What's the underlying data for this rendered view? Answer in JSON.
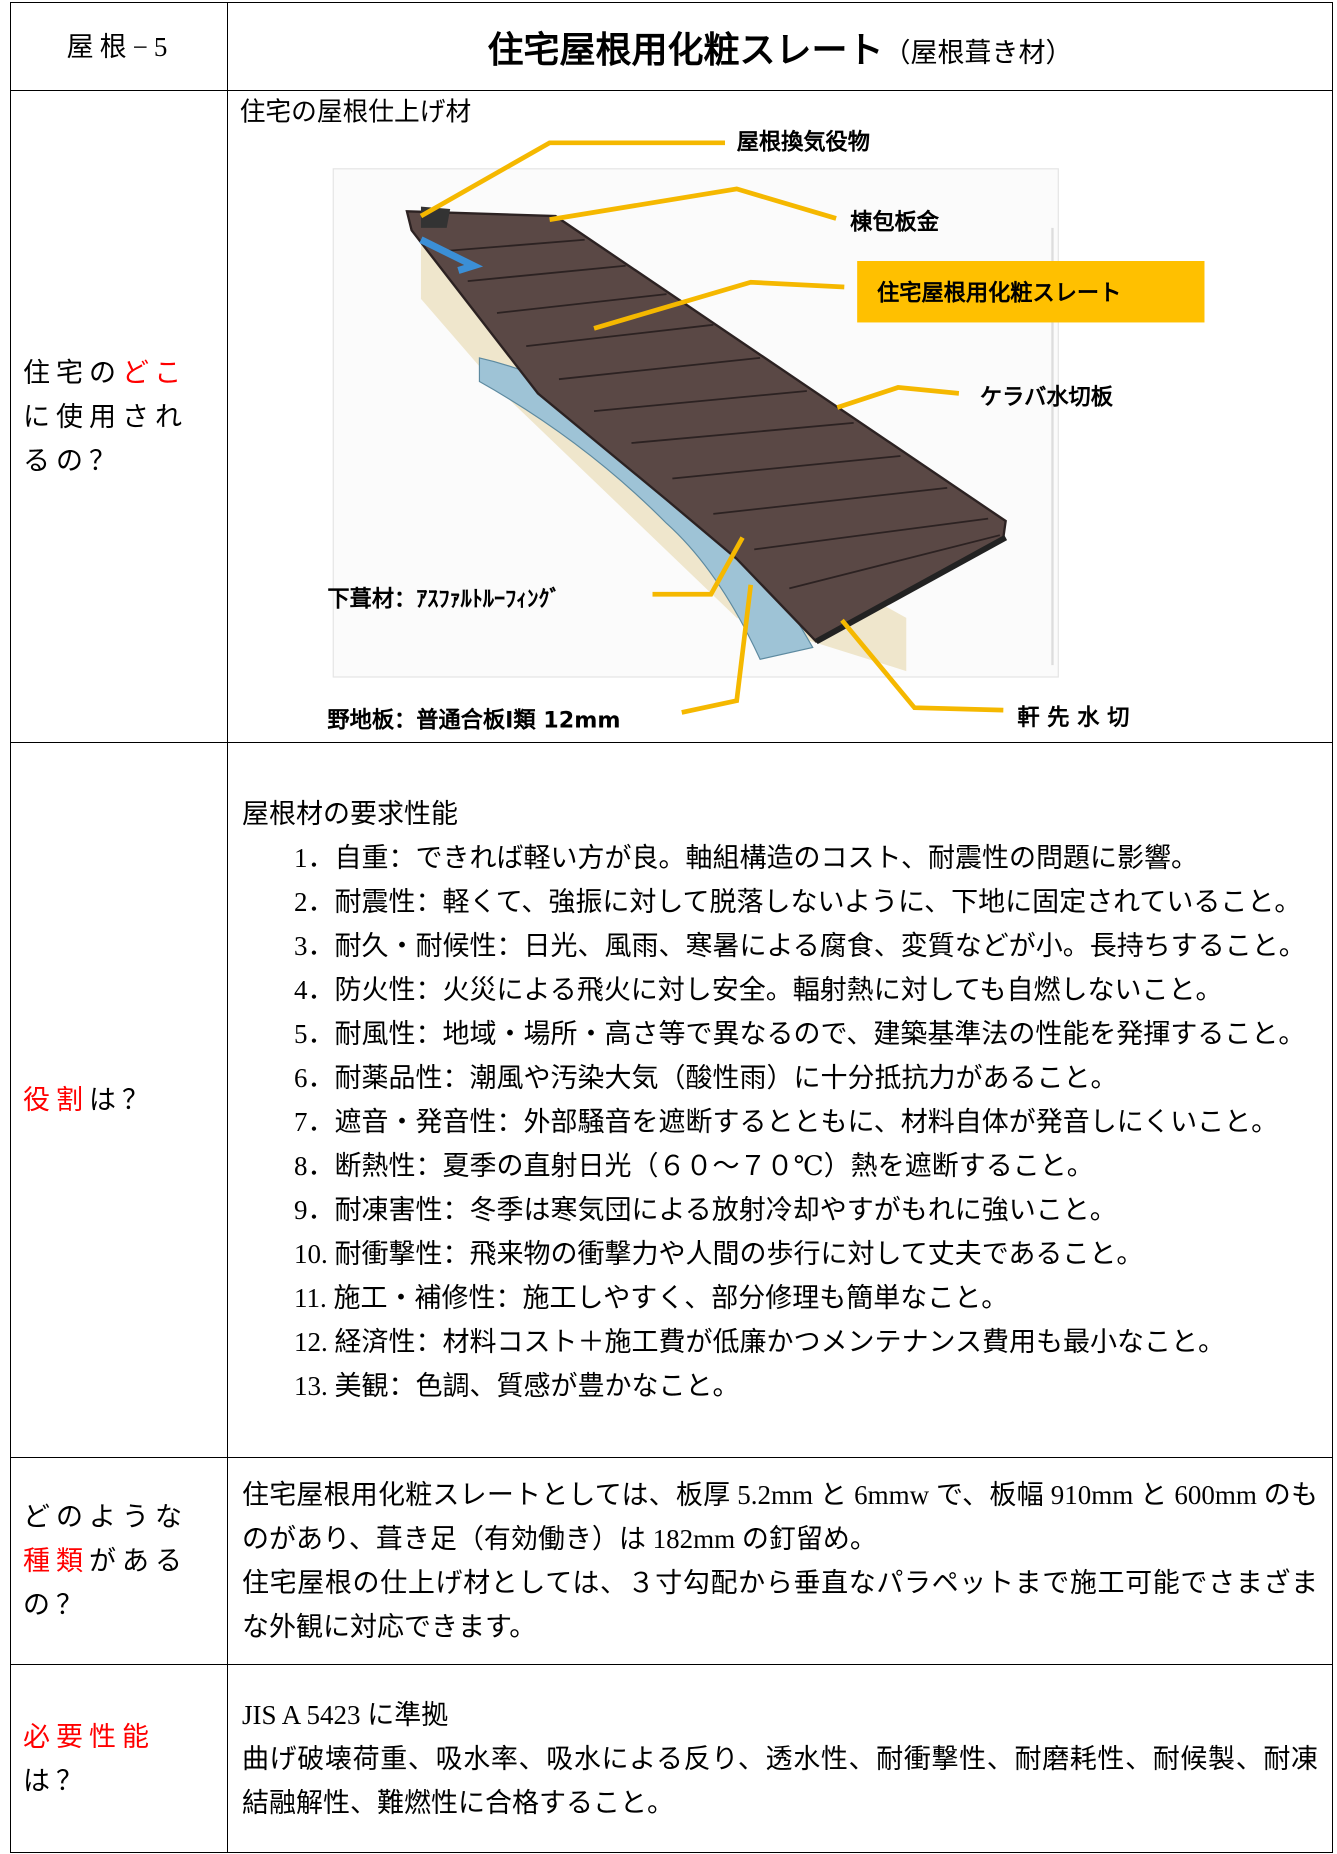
{
  "header": {
    "code": "屋根−5",
    "title": "住宅屋根用化粧スレート",
    "subtitle": "（屋根葺き材）"
  },
  "emphasis_color": "#ff0000",
  "rows": [
    {
      "label": [
        {
          "text": "住宅の"
        },
        {
          "text": "どこ",
          "emphasis": true
        },
        {
          "text": "に使用されるの？"
        }
      ],
      "diagram": {
        "caption": "住宅の屋根仕上げ材",
        "callouts": [
          "屋根換気役物",
          "棟包板金",
          "住宅屋根用化粧スレート",
          "ケラバ水切板",
          "下葺材：ｱｽﾌｧﾙﾄﾙｰﾌｨﾝｸﾞ",
          "野地板：普通合板Ⅰ類 12mm",
          "軒 先 水 切"
        ]
      }
    },
    {
      "label": [
        {
          "text": "役割",
          "emphasis": true
        },
        {
          "text": "は？"
        }
      ],
      "heading": "屋根材の要求性能",
      "items": [
        "1．自重：できれば軽い方が良。軸組構造のコスト、耐震性の問題に影響。",
        "2．耐震性：軽くて、強振に対して脱落しないように、下地に固定されていること。",
        "3．耐久・耐候性：日光、風雨、寒暑による腐食、変質などが小。長持ちすること。",
        "4．防火性：火災による飛火に対し安全。輻射熱に対しても自燃しないこと。",
        "5．耐風性：地域・場所・高さ等で異なるので、建築基準法の性能を発揮すること。",
        "6．耐薬品性：潮風や汚染大気（酸性雨）に十分抵抗力があること。",
        "7．遮音・発音性：外部騒音を遮断するとともに、材料自体が発音しにくいこと。",
        "8．断熱性：夏季の直射日光（６０～７０℃）熱を遮断すること。",
        "9．耐凍害性：冬季は寒気団による放射冷却やすがもれに強いこと。",
        "10. 耐衝撃性：飛来物の衝撃力や人間の歩行に対して丈夫であること。",
        "11. 施工・補修性：施工しやすく、部分修理も簡単なこと。",
        "12. 経済性：材料コスト＋施工費が低廉かつメンテナンス費用も最小なこと。",
        "13. 美観：色調、質感が豊かなこと。"
      ]
    },
    {
      "label": [
        {
          "text": "どのような"
        },
        {
          "text": "種類",
          "emphasis": true
        },
        {
          "text": "があるの？"
        }
      ],
      "paragraphs": [
        "住宅屋根用化粧スレートとしては、板厚 5.2mm と 6mmw で、板幅 910mm と 600mm のものがあり、葺き足（有効働き）は 182mm の釘留め。",
        "住宅屋根の仕上げ材としては、３寸勾配から垂直なパラペットまで施工可能でさまざまな外観に対応できます。"
      ]
    },
    {
      "label": [
        {
          "text": "必要性能",
          "emphasis": true
        },
        {
          "text": "は？"
        }
      ],
      "paragraphs": [
        "JIS A 5423 に準拠",
        "曲げ破壊荷重、吸水率、吸水による反り、透水性、耐衝撃性、耐磨耗性、耐候製、耐凍結融解性、難燃性に合格すること。"
      ]
    }
  ]
}
